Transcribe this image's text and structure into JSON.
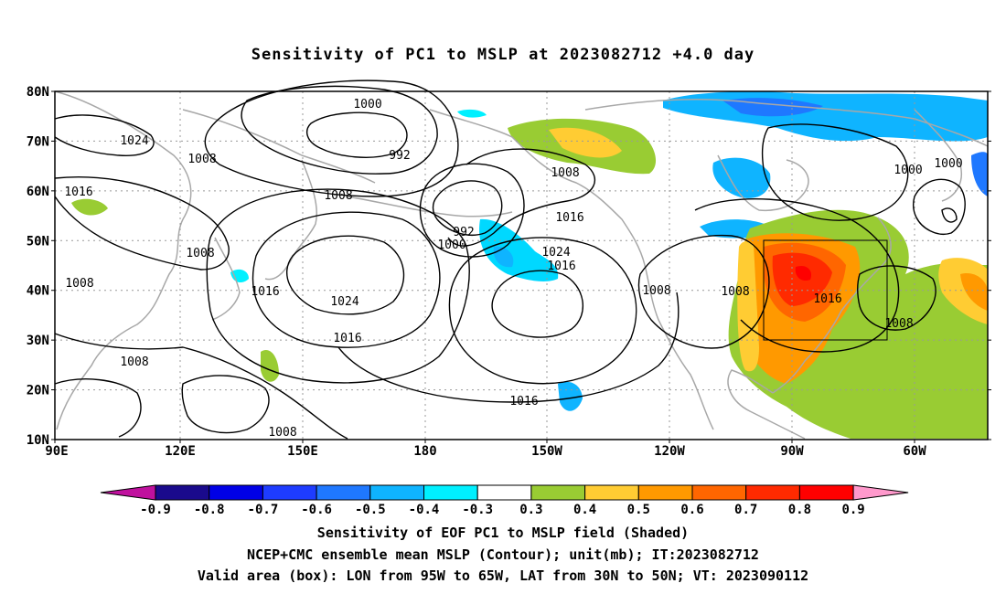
{
  "title": "Sensitivity of PC1 to MSLP at 2023082712 +4.0 day",
  "lat_labels": [
    "80N",
    "70N",
    "60N",
    "50N",
    "40N",
    "30N",
    "20N",
    "10N"
  ],
  "lon_labels": [
    "90E",
    "120E",
    "150E",
    "180",
    "150W",
    "120W",
    "90W",
    "60W"
  ],
  "contour_labels": [
    "1000",
    "1024",
    "992",
    "1008",
    "1016",
    "1008",
    "1008",
    "992",
    "1000",
    "1008",
    "1016",
    "1024",
    "1016",
    "1024",
    "1016",
    "1008",
    "1008",
    "1016",
    "1008",
    "1000",
    "1000",
    "1008",
    "1016",
    "1008",
    "1008",
    "1016"
  ],
  "colorbar": {
    "labels": [
      "-0.9",
      "-0.8",
      "-0.7",
      "-0.6",
      "-0.5",
      "-0.4",
      "-0.3",
      "0.3",
      "0.4",
      "0.5",
      "0.6",
      "0.7",
      "0.8",
      "0.9"
    ],
    "colors": [
      "#1a0a8c",
      "#0000e6",
      "#1e3cff",
      "#1f78ff",
      "#0fb4ff",
      "#00f0ff",
      "#ffffff",
      "#99cc33",
      "#ffcc33",
      "#ff9900",
      "#ff6600",
      "#ff2a00",
      "#ff0000"
    ],
    "end_colors": [
      "#c0119e",
      "#ff99cc"
    ]
  },
  "captions": [
    "Sensitivity of EOF PC1 to MSLP field (Shaded)",
    "NCEP+CMC ensemble mean MSLP (Contour); unit(mb); IT:2023082712",
    "Valid area (box): LON from 95W to 65W, LAT from 30N to 50N; VT: 2023090112"
  ]
}
